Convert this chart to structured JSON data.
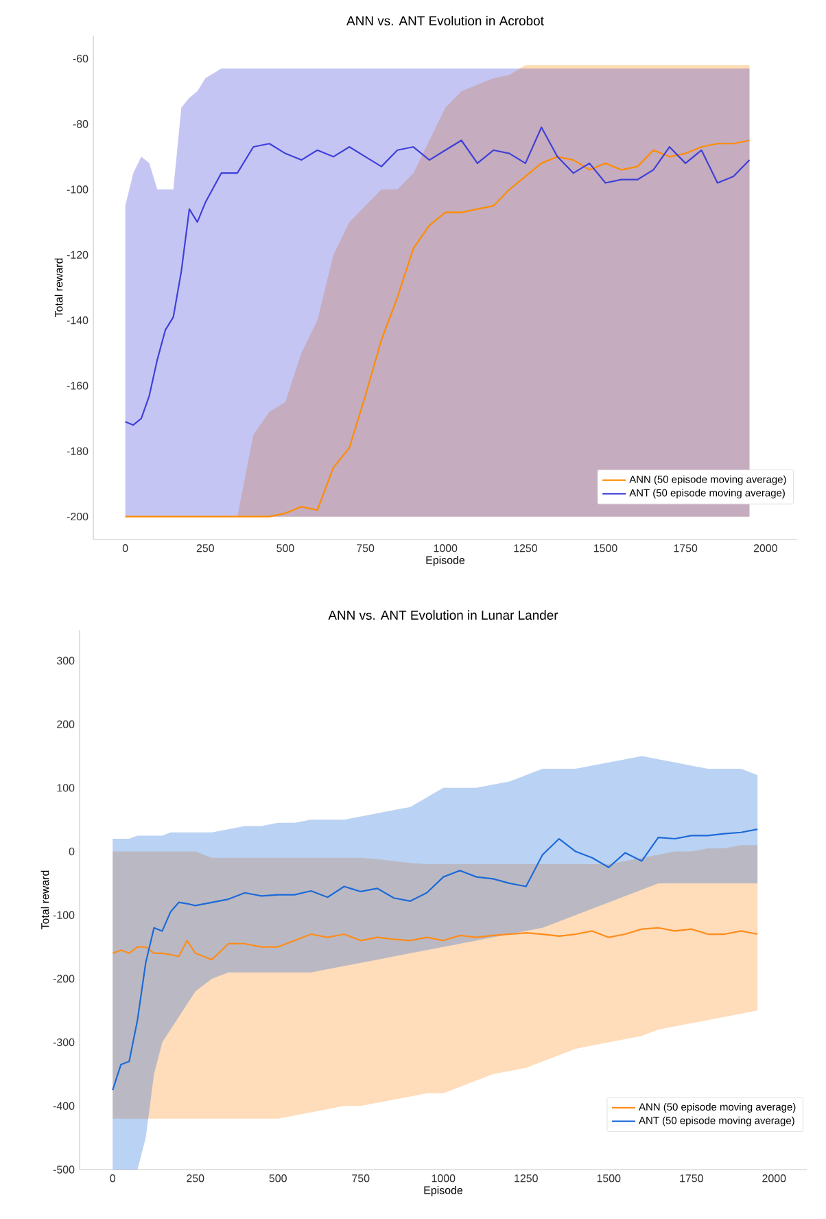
{
  "chart_data": [
    {
      "type": "line",
      "title": "ANN vs. ANT Evolution in Acrobot",
      "xlabel": "Episode",
      "ylabel": "Total reward",
      "xlim": [
        -100,
        2099
      ],
      "ylim": [
        -207,
        -53
      ],
      "xticks": [
        0,
        250,
        500,
        750,
        1000,
        1250,
        1500,
        1750,
        2000
      ],
      "yticks": [
        -200,
        -180,
        -160,
        -140,
        -120,
        -100,
        -80,
        -60
      ],
      "legend": "bottom right",
      "series": [
        {
          "name": "ANN (50 episode moving average)",
          "color": "#ff8c00",
          "x": [
            0,
            25,
            50,
            75,
            100,
            125,
            150,
            175,
            200,
            225,
            250,
            300,
            350,
            400,
            450,
            500,
            550,
            600,
            650,
            700,
            750,
            800,
            850,
            900,
            950,
            1000,
            1050,
            1100,
            1150,
            1200,
            1250,
            1300,
            1350,
            1400,
            1450,
            1500,
            1550,
            1600,
            1650,
            1700,
            1750,
            1800,
            1850,
            1900,
            1950
          ],
          "values": [
            -200,
            -200,
            -200,
            -200,
            -200,
            -200,
            -200,
            -200,
            -200,
            -200,
            -200,
            -200,
            -200,
            -200,
            -200,
            -199,
            -197,
            -198,
            -185,
            -179,
            -163,
            -146,
            -133,
            -118,
            -111,
            -107,
            -107,
            -106,
            -105,
            -100,
            -96,
            -92,
            -90,
            -91,
            -94,
            -92,
            -94,
            -93,
            -88,
            -90,
            -89,
            -87,
            -86,
            -86,
            -85
          ],
          "lower": [
            -200,
            -200,
            -200,
            -200,
            -200,
            -200,
            -200,
            -200,
            -200,
            -200,
            -200,
            -200,
            -200,
            -200,
            -200,
            -200,
            -200,
            -200,
            -200,
            -200,
            -200,
            -200,
            -200,
            -200,
            -200,
            -200,
            -200,
            -200,
            -200,
            -200,
            -200,
            -200,
            -200,
            -200,
            -200,
            -200,
            -200,
            -200,
            -200,
            -200,
            -200,
            -200,
            -200,
            -200,
            -200
          ],
          "upper": [
            -200,
            -200,
            -200,
            -200,
            -200,
            -200,
            -200,
            -200,
            -200,
            -200,
            -200,
            -200,
            -200,
            -175,
            -168,
            -165,
            -150,
            -140,
            -120,
            -110,
            -105,
            -100,
            -100,
            -95,
            -85,
            -75,
            -70,
            -68,
            -66,
            -65,
            -62,
            -62,
            -62,
            -62,
            -62,
            -62,
            -62,
            -62,
            -62,
            -62,
            -62,
            -62,
            -62,
            -62,
            -62
          ]
        },
        {
          "name": "ANT (50 episode moving average)",
          "color": "#3f3fd9",
          "x": [
            0,
            25,
            50,
            75,
            100,
            125,
            150,
            175,
            200,
            225,
            250,
            300,
            350,
            400,
            450,
            500,
            550,
            600,
            650,
            700,
            750,
            800,
            850,
            900,
            950,
            1000,
            1050,
            1100,
            1150,
            1200,
            1250,
            1300,
            1350,
            1400,
            1450,
            1500,
            1550,
            1600,
            1650,
            1700,
            1750,
            1800,
            1850,
            1900,
            1950
          ],
          "values": [
            -171,
            -172,
            -170,
            -163,
            -152,
            -143,
            -139,
            -125,
            -106,
            -110,
            -104,
            -95,
            -95,
            -87,
            -86,
            -89,
            -91,
            -88,
            -90,
            -87,
            -90,
            -93,
            -88,
            -87,
            -91,
            -88,
            -85,
            -92,
            -88,
            -89,
            -92,
            -81,
            -90,
            -95,
            -92,
            -98,
            -97,
            -97,
            -94,
            -87,
            -92,
            -88,
            -98,
            -96,
            -91
          ],
          "lower": [
            -200,
            -200,
            -200,
            -200,
            -200,
            -200,
            -200,
            -200,
            -200,
            -200,
            -200,
            -200,
            -200,
            -200,
            -200,
            -200,
            -200,
            -200,
            -200,
            -200,
            -200,
            -200,
            -200,
            -200,
            -200,
            -200,
            -200,
            -200,
            -200,
            -200,
            -200,
            -200,
            -200,
            -200,
            -200,
            -200,
            -200,
            -200,
            -200,
            -200,
            -200,
            -200,
            -200,
            -200,
            -200
          ],
          "upper": [
            -105,
            -95,
            -90,
            -92,
            -100,
            -100,
            -100,
            -75,
            -72,
            -70,
            -66,
            -63,
            -63,
            -63,
            -63,
            -63,
            -63,
            -63,
            -63,
            -63,
            -63,
            -63,
            -63,
            -63,
            -63,
            -63,
            -63,
            -63,
            -63,
            -63,
            -63,
            -63,
            -63,
            -63,
            -63,
            -63,
            -63,
            -63,
            -63,
            -63,
            -63,
            -63,
            -63,
            -63,
            -63
          ]
        }
      ]
    },
    {
      "type": "line",
      "title": "ANN vs. ANT Evolution in Lunar Lander",
      "xlabel": "Episode",
      "ylabel": "Total reward",
      "xlim": [
        -100,
        2099
      ],
      "ylim": [
        -500,
        348
      ],
      "xticks": [
        0,
        250,
        500,
        750,
        1000,
        1250,
        1500,
        1750,
        2000
      ],
      "yticks": [
        -500,
        -400,
        -300,
        -200,
        -100,
        0,
        100,
        200,
        300
      ],
      "legend": "bottom right",
      "series": [
        {
          "name": "ANN (50 episode moving average)",
          "color": "#ff8c1a",
          "x": [
            0,
            25,
            50,
            75,
            100,
            125,
            150,
            175,
            200,
            225,
            250,
            300,
            350,
            400,
            450,
            500,
            550,
            600,
            650,
            700,
            750,
            800,
            850,
            900,
            950,
            1000,
            1050,
            1100,
            1150,
            1200,
            1250,
            1300,
            1350,
            1400,
            1450,
            1500,
            1550,
            1600,
            1650,
            1700,
            1750,
            1800,
            1850,
            1900,
            1950
          ],
          "values": [
            -160,
            -155,
            -160,
            -150,
            -150,
            -160,
            -160,
            -162,
            -165,
            -140,
            -160,
            -170,
            -145,
            -145,
            -150,
            -150,
            -140,
            -130,
            -135,
            -130,
            -140,
            -135,
            -138,
            -140,
            -135,
            -140,
            -132,
            -135,
            -132,
            -130,
            -128,
            -130,
            -133,
            -130,
            -125,
            -135,
            -130,
            -122,
            -120,
            -125,
            -122,
            -130,
            -130,
            -125,
            -130
          ],
          "lower": [
            -420,
            -420,
            -420,
            -420,
            -420,
            -420,
            -420,
            -420,
            -420,
            -420,
            -420,
            -420,
            -420,
            -420,
            -420,
            -420,
            -415,
            -410,
            -405,
            -400,
            -400,
            -395,
            -390,
            -385,
            -380,
            -380,
            -370,
            -360,
            -350,
            -345,
            -340,
            -330,
            -320,
            -310,
            -305,
            -300,
            -295,
            -290,
            -280,
            -275,
            -270,
            -265,
            -260,
            -255,
            -250
          ],
          "upper": [
            0,
            0,
            0,
            0,
            0,
            0,
            0,
            0,
            0,
            0,
            0,
            -10,
            -10,
            -10,
            -10,
            -10,
            -10,
            -10,
            -10,
            -10,
            -10,
            -12,
            -15,
            -18,
            -20,
            -20,
            -20,
            -20,
            -20,
            -20,
            -20,
            -20,
            -20,
            -20,
            -20,
            -20,
            -15,
            -10,
            -5,
            0,
            0,
            5,
            5,
            10,
            10
          ]
        },
        {
          "name": "ANT (50 episode moving average)",
          "color": "#1c6ad8",
          "x": [
            0,
            25,
            50,
            75,
            100,
            125,
            150,
            175,
            200,
            225,
            250,
            300,
            350,
            400,
            450,
            500,
            550,
            600,
            650,
            700,
            750,
            800,
            850,
            900,
            950,
            1000,
            1050,
            1100,
            1150,
            1200,
            1250,
            1300,
            1350,
            1400,
            1450,
            1500,
            1550,
            1600,
            1650,
            1700,
            1750,
            1800,
            1850,
            1900,
            1950
          ],
          "values": [
            -375,
            -335,
            -330,
            -265,
            -175,
            -120,
            -125,
            -95,
            -80,
            -82,
            -85,
            -80,
            -75,
            -65,
            -70,
            -68,
            -68,
            -62,
            -72,
            -55,
            -63,
            -58,
            -73,
            -78,
            -65,
            -40,
            -30,
            -40,
            -43,
            -50,
            -55,
            -5,
            20,
            0,
            -10,
            -25,
            -2,
            -15,
            22,
            20,
            25,
            25,
            28,
            30,
            35
          ],
          "lower": [
            -500,
            -500,
            -500,
            -500,
            -450,
            -350,
            -300,
            -280,
            -260,
            -240,
            -220,
            -200,
            -190,
            -190,
            -190,
            -190,
            -190,
            -190,
            -185,
            -180,
            -175,
            -170,
            -165,
            -160,
            -155,
            -150,
            -145,
            -140,
            -135,
            -130,
            -125,
            -120,
            -110,
            -100,
            -90,
            -80,
            -70,
            -60,
            -50,
            -50,
            -50,
            -50,
            -50,
            -50,
            -50
          ],
          "upper": [
            20,
            20,
            20,
            25,
            25,
            25,
            25,
            30,
            30,
            30,
            30,
            30,
            35,
            40,
            40,
            45,
            45,
            50,
            50,
            50,
            55,
            60,
            65,
            70,
            85,
            100,
            100,
            100,
            105,
            110,
            120,
            130,
            130,
            130,
            135,
            140,
            145,
            150,
            145,
            140,
            135,
            130,
            130,
            130,
            120
          ]
        }
      ]
    }
  ]
}
